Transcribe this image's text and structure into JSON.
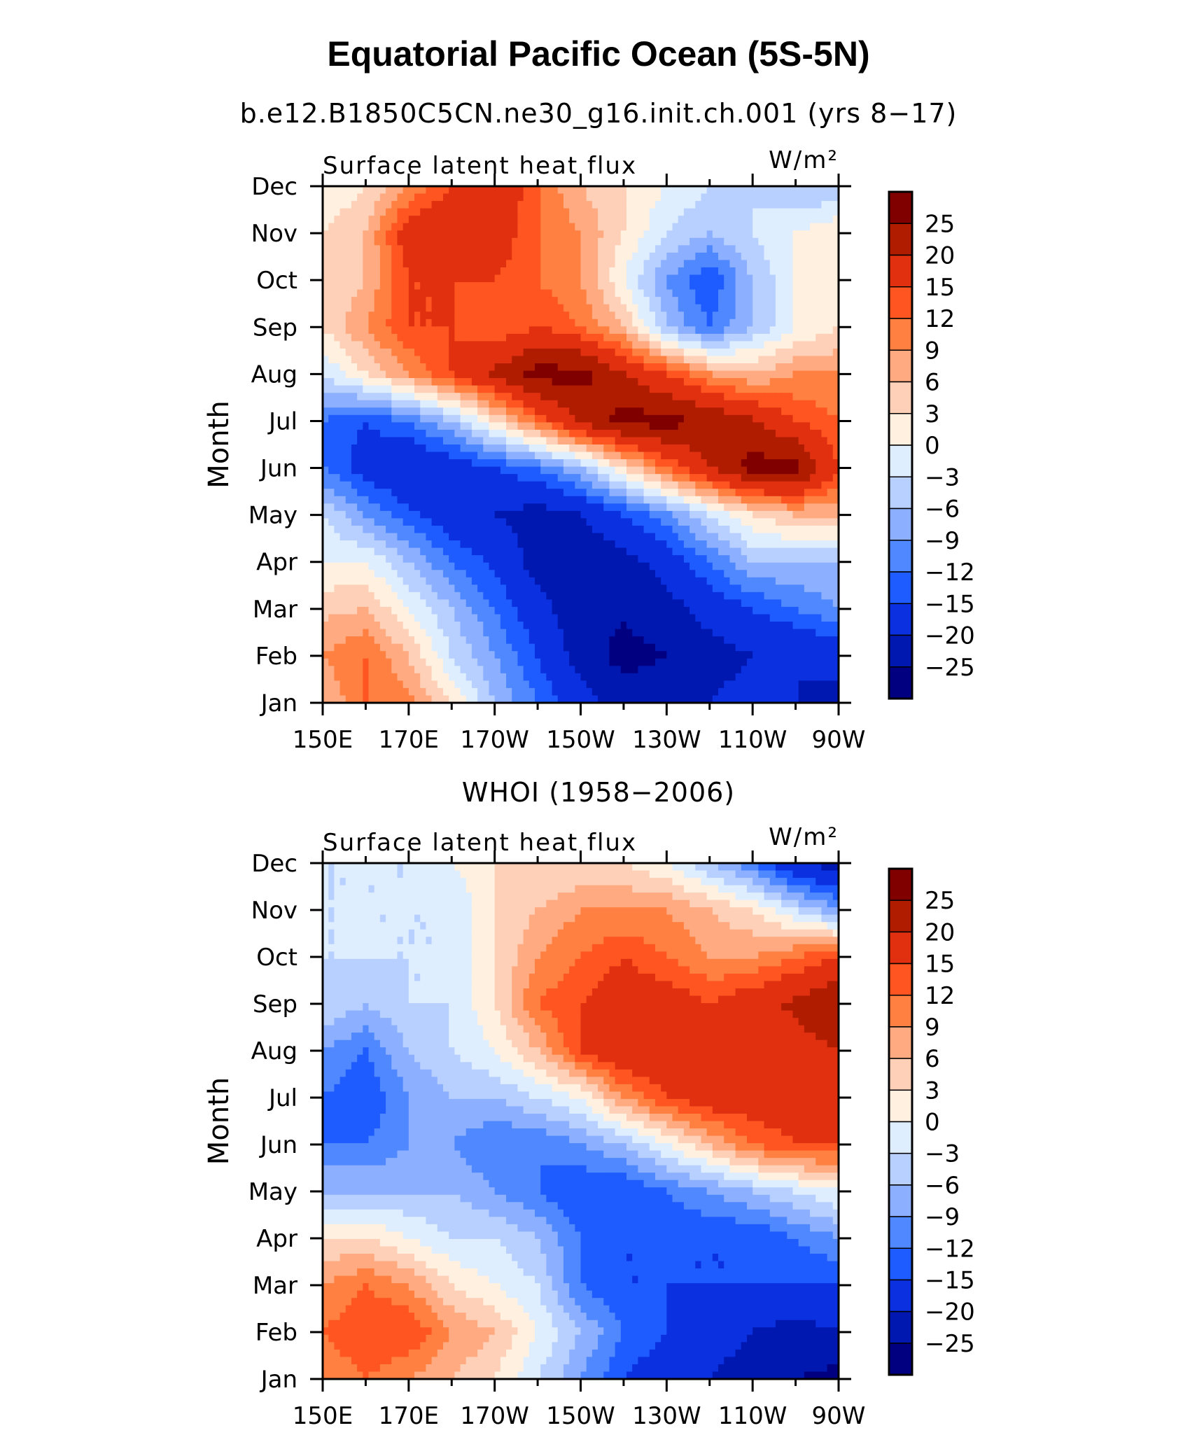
{
  "title": "Equatorial Pacific Ocean (5S-5N)",
  "colorbar": {
    "levels": [
      "25",
      "20",
      "15",
      "12",
      "9",
      "6",
      "3",
      "0",
      "−3",
      "−6",
      "−9",
      "−12",
      "−15",
      "−20",
      "−25"
    ],
    "colors": [
      "#800000",
      "#b01c00",
      "#e03010",
      "#ff5520",
      "#ff8040",
      "#ffaa80",
      "#ffd0b8",
      "#fff0e0",
      "#deeeff",
      "#b8d0ff",
      "#8cb0ff",
      "#4f88ff",
      "#1f5cff",
      "#0a30e0",
      "#0018b0",
      "#000080"
    ]
  },
  "chart_data": [
    {
      "type": "heatmap",
      "subtitle": "b.e12.B1850C5CN.ne30_g16.init.ch.001 (yrs 8−17)",
      "left_label": "Surface latent heat flux",
      "units": "W/m²",
      "ylabel": "Month",
      "x_ticks": [
        "150E",
        "170E",
        "170W",
        "150W",
        "130W",
        "110W",
        "90W"
      ],
      "y_ticks": [
        "Jan",
        "Feb",
        "Mar",
        "Apr",
        "May",
        "Jun",
        "Jul",
        "Aug",
        "Sep",
        "Oct",
        "Nov",
        "Dec"
      ],
      "x_values": [
        150,
        160,
        170,
        180,
        190,
        200,
        210,
        220,
        230,
        240,
        250,
        260,
        270
      ],
      "z": [
        [
          6,
          12,
          10,
          3,
          -6,
          -12,
          -18,
          -22,
          -22,
          -20,
          -18,
          -20,
          -22
        ],
        [
          9,
          12,
          6,
          -3,
          -9,
          -15,
          -22,
          -27,
          -25,
          -22,
          -20,
          -20,
          -18
        ],
        [
          5,
          6,
          0,
          -6,
          -12,
          -18,
          -24,
          -24,
          -22,
          -18,
          -15,
          -12,
          -9
        ],
        [
          0,
          0,
          -6,
          -12,
          -16,
          -22,
          -24,
          -22,
          -18,
          -12,
          -6,
          -6,
          -6
        ],
        [
          -3,
          -9,
          -14,
          -18,
          -20,
          -22,
          -20,
          -15,
          -10,
          -3,
          3,
          6,
          6
        ],
        [
          -12,
          -17,
          -20,
          -18,
          -15,
          -12,
          -6,
          3,
          12,
          20,
          27,
          27,
          15
        ],
        [
          -12,
          -15,
          -12,
          -6,
          3,
          12,
          21,
          27,
          27,
          24,
          21,
          15,
          12
        ],
        [
          -3,
          3,
          9,
          15,
          21,
          27,
          27,
          20,
          15,
          9,
          6,
          9,
          9
        ],
        [
          3,
          9,
          15,
          15,
          12,
          15,
          12,
          6,
          -6,
          -12,
          -6,
          0,
          3
        ],
        [
          3,
          6,
          15,
          15,
          15,
          12,
          9,
          0,
          -9,
          -15,
          -6,
          0,
          0
        ],
        [
          3,
          6,
          18,
          20,
          18,
          12,
          9,
          3,
          -3,
          -6,
          -3,
          0,
          3
        ],
        [
          0,
          3,
          9,
          15,
          20,
          12,
          6,
          3,
          0,
          -3,
          -3,
          -6,
          -6
        ]
      ]
    },
    {
      "type": "heatmap",
      "subtitle": "WHOI (1958−2006)",
      "left_label": "Surface latent heat flux",
      "units": "W/m²",
      "ylabel": "Month",
      "x_ticks": [
        "150E",
        "170E",
        "170W",
        "150W",
        "130W",
        "110W",
        "90W"
      ],
      "y_ticks": [
        "Jan",
        "Feb",
        "Mar",
        "Apr",
        "May",
        "Jun",
        "Jul",
        "Aug",
        "Sep",
        "Oct",
        "Nov",
        "Dec"
      ],
      "x_values": [
        150,
        160,
        170,
        180,
        190,
        200,
        210,
        220,
        230,
        240,
        250,
        260,
        270
      ],
      "z": [
        [
          9,
          12,
          9,
          6,
          3,
          -3,
          -9,
          -15,
          -18,
          -20,
          -22,
          -25,
          -27
        ],
        [
          12,
          15,
          15,
          9,
          6,
          0,
          -6,
          -12,
          -15,
          -18,
          -20,
          -22,
          -20
        ],
        [
          9,
          12,
          9,
          3,
          0,
          -3,
          -12,
          -15,
          -15,
          -15,
          -15,
          -15,
          -15
        ],
        [
          3,
          3,
          0,
          -3,
          -3,
          -6,
          -12,
          -15,
          -15,
          -15,
          -15,
          -12,
          -9
        ],
        [
          -6,
          -6,
          -6,
          -6,
          -9,
          -12,
          -15,
          -15,
          -12,
          -9,
          -6,
          -3,
          0
        ],
        [
          -12,
          -12,
          -9,
          -9,
          -12,
          -12,
          -9,
          -6,
          0,
          6,
          12,
          15,
          15
        ],
        [
          -12,
          -15,
          -9,
          -6,
          -6,
          -3,
          0,
          9,
          15,
          18,
          18,
          18,
          15
        ],
        [
          -9,
          -12,
          -6,
          -3,
          0,
          6,
          15,
          20,
          18,
          15,
          15,
          18,
          20
        ],
        [
          -3,
          -6,
          -3,
          -3,
          3,
          12,
          15,
          18,
          18,
          15,
          18,
          21,
          25
        ],
        [
          -3,
          -3,
          -3,
          -3,
          3,
          9,
          12,
          15,
          12,
          9,
          9,
          12,
          15
        ],
        [
          -3,
          -3,
          -3,
          -3,
          3,
          6,
          9,
          9,
          9,
          6,
          3,
          -3,
          -9
        ],
        [
          -3,
          -3,
          -3,
          0,
          3,
          3,
          3,
          3,
          0,
          -6,
          -12,
          -20,
          -22
        ]
      ]
    }
  ]
}
